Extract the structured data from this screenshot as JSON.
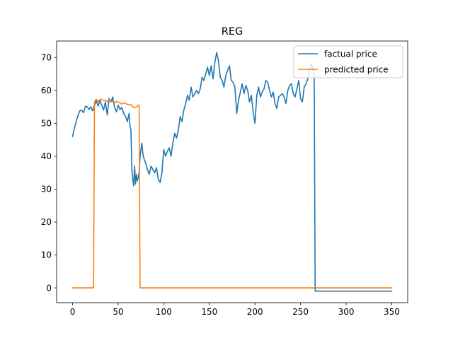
{
  "chart_data": {
    "type": "line",
    "title": "REG",
    "xlabel": "",
    "ylabel": "",
    "xlim": [
      -17.5,
      367.5
    ],
    "ylim": [
      -4.5,
      75
    ],
    "xticks": [
      0,
      50,
      100,
      150,
      200,
      250,
      300,
      350
    ],
    "yticks": [
      0,
      10,
      20,
      30,
      40,
      50,
      60,
      70
    ],
    "grid": false,
    "legend_position": "top-right",
    "series": [
      {
        "name": "factual price",
        "color": "#1f77b4",
        "points": [
          [
            0,
            46.0
          ],
          [
            2,
            48.5
          ],
          [
            4,
            50.5
          ],
          [
            6,
            52.5
          ],
          [
            8,
            53.8
          ],
          [
            10,
            54.0
          ],
          [
            12,
            53.2
          ],
          [
            14,
            55.2
          ],
          [
            16,
            55.0
          ],
          [
            18,
            54.2
          ],
          [
            20,
            55.0
          ],
          [
            22,
            53.8
          ],
          [
            24,
            55.5
          ],
          [
            26,
            56.8
          ],
          [
            28,
            55.2
          ],
          [
            30,
            57.0
          ],
          [
            32,
            55.5
          ],
          [
            34,
            54.0
          ],
          [
            36,
            56.5
          ],
          [
            38,
            52.5
          ],
          [
            40,
            57.5
          ],
          [
            42,
            56.5
          ],
          [
            44,
            58.0
          ],
          [
            46,
            55.0
          ],
          [
            48,
            53.5
          ],
          [
            50,
            55.5
          ],
          [
            52,
            54.2
          ],
          [
            54,
            54.8
          ],
          [
            56,
            53.0
          ],
          [
            58,
            52.2
          ],
          [
            60,
            50.5
          ],
          [
            62,
            53.0
          ],
          [
            63,
            49.0
          ],
          [
            64,
            48.0
          ],
          [
            65,
            36.0
          ],
          [
            66,
            33.0
          ],
          [
            67,
            31.0
          ],
          [
            68,
            37.0
          ],
          [
            69,
            31.5
          ],
          [
            70,
            34.5
          ],
          [
            71,
            32.5
          ],
          [
            72,
            33.5
          ],
          [
            73,
            35.0
          ],
          [
            74,
            40.0
          ],
          [
            75,
            42.0
          ],
          [
            76,
            44.0
          ],
          [
            77,
            41.0
          ],
          [
            78,
            39.5
          ],
          [
            80,
            38.0
          ],
          [
            82,
            36.0
          ],
          [
            84,
            34.5
          ],
          [
            86,
            37.0
          ],
          [
            88,
            36.0
          ],
          [
            90,
            35.0
          ],
          [
            92,
            36.5
          ],
          [
            94,
            33.0
          ],
          [
            96,
            32.0
          ],
          [
            98,
            35.0
          ],
          [
            100,
            42.0
          ],
          [
            102,
            40.0
          ],
          [
            104,
            41.5
          ],
          [
            106,
            42.5
          ],
          [
            108,
            40.0
          ],
          [
            110,
            44.0
          ],
          [
            112,
            47.0
          ],
          [
            114,
            45.5
          ],
          [
            116,
            48.0
          ],
          [
            118,
            52.0
          ],
          [
            120,
            50.5
          ],
          [
            122,
            54.0
          ],
          [
            124,
            56.0
          ],
          [
            126,
            58.5
          ],
          [
            128,
            57.0
          ],
          [
            130,
            61.0
          ],
          [
            132,
            58.0
          ],
          [
            134,
            59.0
          ],
          [
            136,
            60.0
          ],
          [
            138,
            59.0
          ],
          [
            140,
            60.5
          ],
          [
            142,
            64.0
          ],
          [
            144,
            63.0
          ],
          [
            146,
            65.0
          ],
          [
            148,
            67.0
          ],
          [
            150,
            64.5
          ],
          [
            152,
            67.5
          ],
          [
            154,
            63.5
          ],
          [
            156,
            68.5
          ],
          [
            158,
            71.5
          ],
          [
            160,
            69.0
          ],
          [
            162,
            64.0
          ],
          [
            164,
            63.0
          ],
          [
            166,
            61.0
          ],
          [
            168,
            64.5
          ],
          [
            170,
            66.0
          ],
          [
            172,
            67.5
          ],
          [
            174,
            63.0
          ],
          [
            176,
            62.5
          ],
          [
            178,
            61.0
          ],
          [
            180,
            53.0
          ],
          [
            182,
            57.0
          ],
          [
            184,
            59.5
          ],
          [
            186,
            62.0
          ],
          [
            188,
            59.0
          ],
          [
            190,
            61.5
          ],
          [
            192,
            60.0
          ],
          [
            194,
            56.5
          ],
          [
            196,
            58.5
          ],
          [
            198,
            53.5
          ],
          [
            200,
            50.0
          ],
          [
            202,
            58.5
          ],
          [
            204,
            61.0
          ],
          [
            206,
            58.0
          ],
          [
            208,
            59.5
          ],
          [
            210,
            60.5
          ],
          [
            212,
            63.0
          ],
          [
            214,
            62.5
          ],
          [
            216,
            60.0
          ],
          [
            218,
            58.0
          ],
          [
            220,
            59.5
          ],
          [
            222,
            56.0
          ],
          [
            224,
            54.5
          ],
          [
            226,
            58.0
          ],
          [
            228,
            58.5
          ],
          [
            230,
            59.0
          ],
          [
            232,
            58.0
          ],
          [
            234,
            56.0
          ],
          [
            236,
            60.0
          ],
          [
            238,
            61.5
          ],
          [
            240,
            62.0
          ],
          [
            242,
            59.0
          ],
          [
            244,
            58.0
          ],
          [
            246,
            60.5
          ],
          [
            248,
            63.0
          ],
          [
            250,
            57.5
          ],
          [
            252,
            56.5
          ],
          [
            254,
            61.0
          ],
          [
            256,
            62.0
          ],
          [
            258,
            63.5
          ],
          [
            260,
            66.5
          ],
          [
            262,
            68.0
          ],
          [
            264,
            66.0
          ],
          [
            265,
            64.0
          ],
          [
            266,
            -1.0
          ],
          [
            350,
            -1.0
          ]
        ]
      },
      {
        "name": "predicted price",
        "color": "#ff7f0e",
        "points": [
          [
            0,
            0
          ],
          [
            23,
            0
          ],
          [
            24,
            56.5
          ],
          [
            26,
            57.3
          ],
          [
            28,
            56.6
          ],
          [
            30,
            57.2
          ],
          [
            32,
            57.3
          ],
          [
            34,
            56.9
          ],
          [
            36,
            57.0
          ],
          [
            38,
            56.6
          ],
          [
            40,
            57.0
          ],
          [
            42,
            56.8
          ],
          [
            44,
            56.6
          ],
          [
            46,
            56.2
          ],
          [
            48,
            56.7
          ],
          [
            50,
            56.4
          ],
          [
            52,
            56.2
          ],
          [
            54,
            55.8
          ],
          [
            56,
            56.3
          ],
          [
            58,
            56.0
          ],
          [
            60,
            55.8
          ],
          [
            62,
            55.6
          ],
          [
            64,
            55.7
          ],
          [
            66,
            55.0
          ],
          [
            68,
            54.8
          ],
          [
            70,
            54.9
          ],
          [
            72,
            55.5
          ],
          [
            73,
            55.3
          ],
          [
            74,
            0
          ],
          [
            350,
            0
          ]
        ]
      }
    ]
  }
}
